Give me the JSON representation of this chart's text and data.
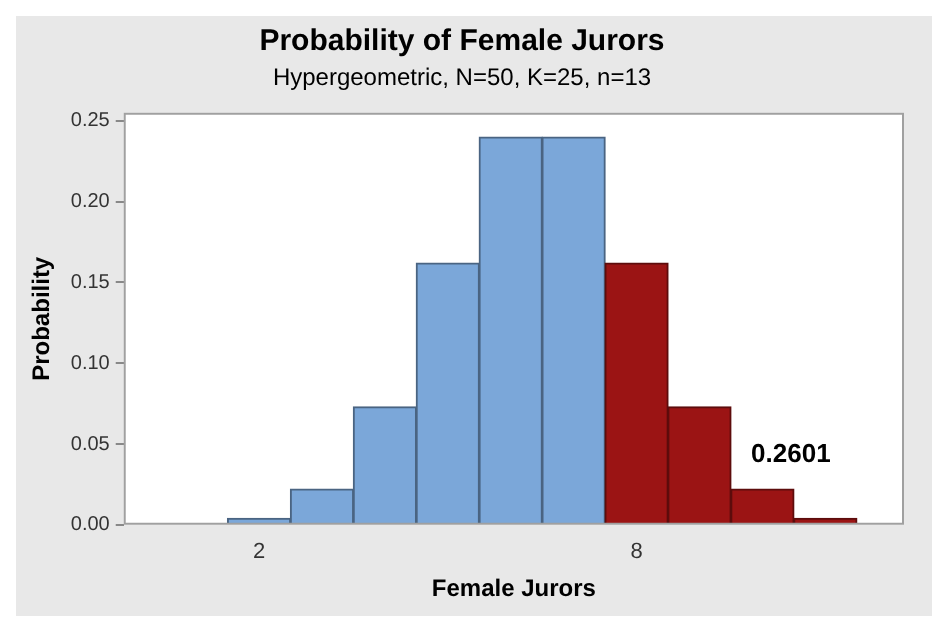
{
  "chart_data": {
    "type": "bar",
    "title": "Probability of Female Jurors",
    "subtitle": "Hypergeometric, N=50, K=25, n=13",
    "xlabel": "Female Jurors",
    "ylabel": "Probability",
    "x": [
      2,
      3,
      4,
      5,
      6,
      7,
      8,
      9,
      10,
      11
    ],
    "values": [
      0.004,
      0.022,
      0.073,
      0.162,
      0.24,
      0.24,
      0.162,
      0.073,
      0.022,
      0.004
    ],
    "colors": [
      "#7ba7d9",
      "#7ba7d9",
      "#7ba7d9",
      "#7ba7d9",
      "#7ba7d9",
      "#7ba7d9",
      "#9b1414",
      "#9b1414",
      "#9b1414",
      "#9b1414"
    ],
    "xlim": [
      -0.15,
      12.25
    ],
    "xticks": [
      2,
      8
    ],
    "ylim": [
      0,
      0.255
    ],
    "yticks": [
      {
        "value": 0,
        "label": "0.00"
      },
      {
        "value": 0.05,
        "label": "0.05"
      },
      {
        "value": 0.1,
        "label": "0.10"
      },
      {
        "value": 0.15,
        "label": "0.15"
      },
      {
        "value": 0.2,
        "label": "0.20"
      },
      {
        "value": 0.25,
        "label": "0.25"
      }
    ],
    "annotations": [
      "0.2601"
    ],
    "grid": false,
    "legend": false
  }
}
